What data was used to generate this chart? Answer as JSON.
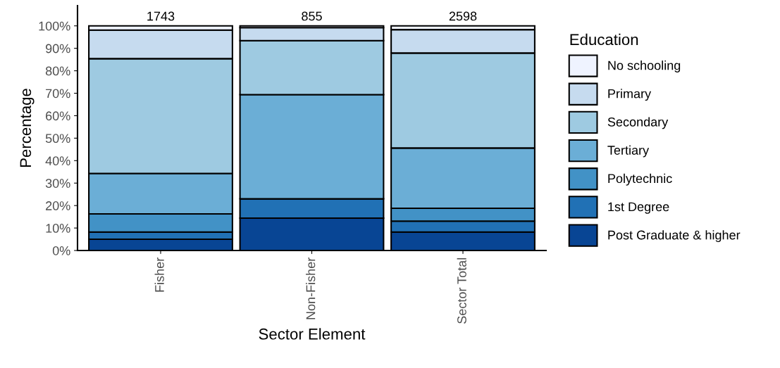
{
  "chart_data": {
    "type": "bar",
    "stacked": true,
    "xlabel": "Sector Element",
    "ylabel": "Percentage",
    "legend_title": "Education",
    "legend": "right",
    "grid": false,
    "categories": [
      "Fisher",
      "Non-Fisher",
      "Sector Total"
    ],
    "series": [
      {
        "name": "Post Graduate & higher",
        "color": "#084594",
        "values": [
          5.0,
          14.4,
          8.2
        ]
      },
      {
        "name": "1st Degree",
        "color": "#2171b5",
        "values": [
          3.2,
          8.6,
          4.9
        ]
      },
      {
        "name": "Polytechnic",
        "color": "#4292c6",
        "values": [
          8.1,
          0,
          5.7
        ]
      },
      {
        "name": "Tertiary",
        "color": "#6baed6",
        "values": [
          18.0,
          46.4,
          26.8
        ]
      },
      {
        "name": "Secondary",
        "color": "#9ecae1",
        "values": [
          51.1,
          24.0,
          42.3
        ]
      },
      {
        "name": "Primary",
        "color": "#c6dbef",
        "values": [
          12.7,
          5.8,
          10.4
        ]
      },
      {
        "name": "No schooling",
        "color": "#eff3ff",
        "values": [
          1.9,
          0.8,
          1.7
        ]
      }
    ],
    "annotations": [
      {
        "text": "1743",
        "x": "Fisher",
        "y": 100
      },
      {
        "text": "855",
        "x": "Non-Fisher",
        "y": 100
      },
      {
        "text": "2598",
        "x": "Sector Total",
        "y": 100
      }
    ],
    "ylim": [
      0,
      109
    ],
    "yticks": [
      {
        "value": 0,
        "label": "0%"
      },
      {
        "value": 10,
        "label": "10%"
      },
      {
        "value": 20,
        "label": "20%"
      },
      {
        "value": 30,
        "label": "30%"
      },
      {
        "value": 40,
        "label": "40%"
      },
      {
        "value": 50,
        "label": "50%"
      },
      {
        "value": 60,
        "label": "60%"
      },
      {
        "value": 70,
        "label": "70%"
      },
      {
        "value": 80,
        "label": "80%"
      },
      {
        "value": 90,
        "label": "90%"
      },
      {
        "value": 100,
        "label": "100%"
      }
    ]
  }
}
